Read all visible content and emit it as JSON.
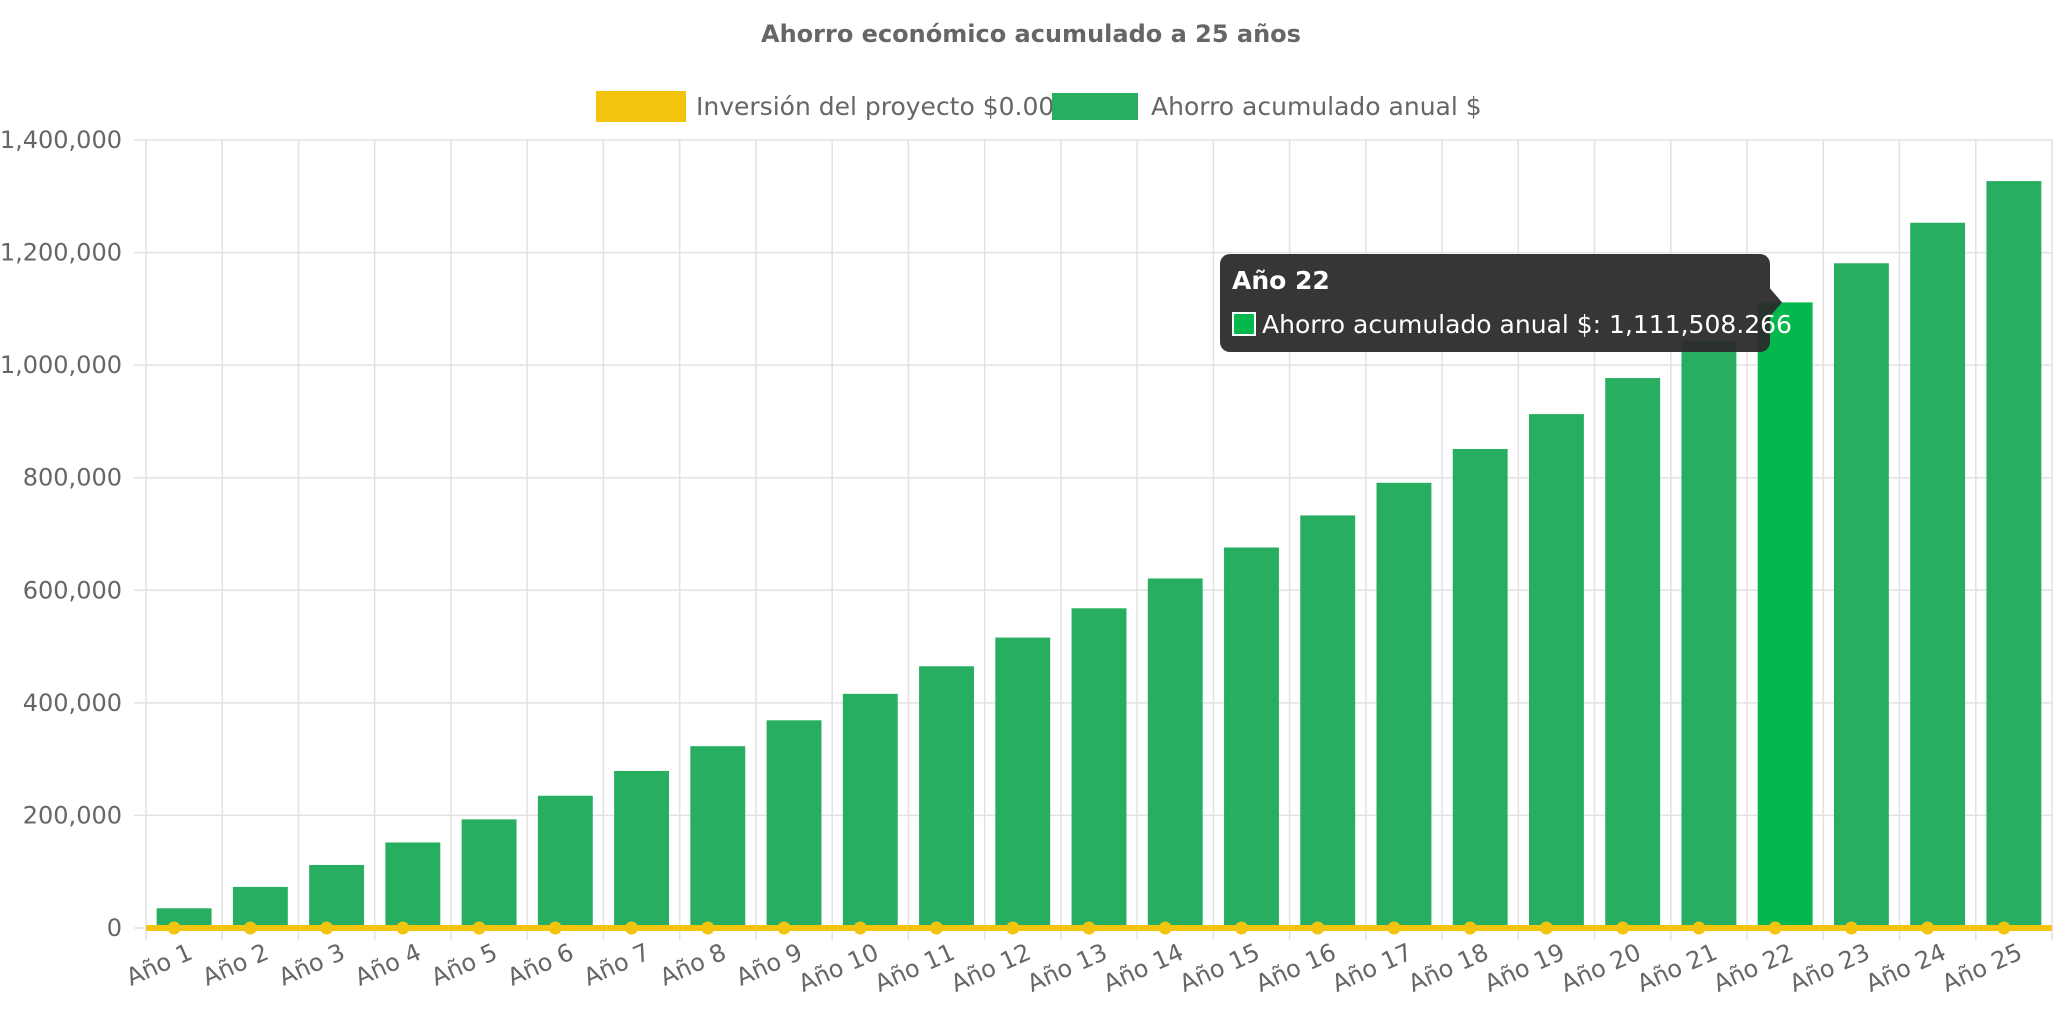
{
  "chart_data": {
    "type": "bar",
    "title": "Ahorro económico acumulado a 25 años",
    "categories": [
      "Año 1",
      "Año 2",
      "Año 3",
      "Año 4",
      "Año 5",
      "Año 6",
      "Año 7",
      "Año 8",
      "Año 9",
      "Año 10",
      "Año 11",
      "Año 12",
      "Año 13",
      "Año 14",
      "Año 15",
      "Año 16",
      "Año 17",
      "Año 18",
      "Año 19",
      "Año 20",
      "Año 21",
      "Año 22",
      "Año 23",
      "Año 24",
      "Año 25"
    ],
    "series": [
      {
        "name": "Inversión del proyecto $0.00",
        "kind": "line",
        "color": "#f2c40e",
        "values": [
          0,
          0,
          0,
          0,
          0,
          0,
          0,
          0,
          0,
          0,
          0,
          0,
          0,
          0,
          0,
          0,
          0,
          0,
          0,
          0,
          0,
          0,
          0,
          0,
          0
        ]
      },
      {
        "name": "Ahorro acumulado anual $",
        "kind": "bar",
        "color": "#27ae60",
        "highlight_color": "#05b84e",
        "values": [
          35000,
          73000,
          112000,
          152000,
          193000,
          235000,
          279000,
          323000,
          369000,
          416000,
          465000,
          516000,
          568000,
          621000,
          676000,
          733000,
          791000,
          851000,
          913000,
          977000,
          1043000,
          1111508.266,
          1181000,
          1253000,
          1327000
        ]
      }
    ],
    "ylim": [
      0,
      1400000
    ],
    "yticks": [
      "0",
      "200,000",
      "400,000",
      "600,000",
      "800,000",
      "1,000,000",
      "1,200,000",
      "1,400,000"
    ],
    "ytick_values": [
      0,
      200000,
      400000,
      600000,
      800000,
      1000000,
      1200000,
      1400000
    ],
    "grid": true,
    "legend": "top-center",
    "tooltip": {
      "category_index": 21,
      "title": "Año 22",
      "body": "Ahorro acumulado anual $: 1,111,508.266"
    }
  }
}
